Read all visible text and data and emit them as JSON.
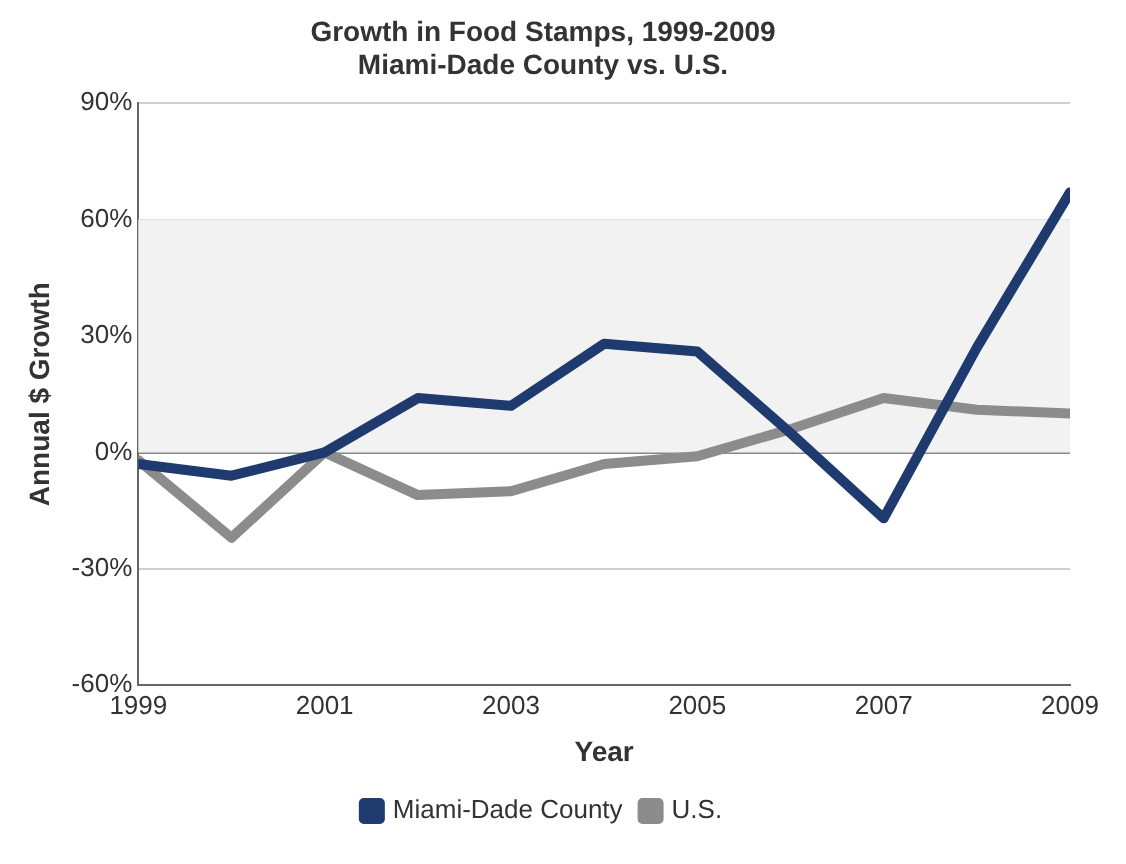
{
  "chart_data": {
    "type": "line",
    "title": "Growth in Food Stamps, 1999-2009",
    "subtitle": "Miami-Dade County vs. U.S.",
    "xlabel": "Year",
    "ylabel": "Annual $ Growth",
    "x": [
      1999,
      2000,
      2001,
      2002,
      2003,
      2004,
      2005,
      2006,
      2007,
      2008,
      2009
    ],
    "series": [
      {
        "name": "Miami-Dade County",
        "color": "#1f3a6e",
        "values": [
          -3,
          -6,
          0,
          14,
          12,
          28,
          26,
          5,
          -17,
          27,
          67
        ]
      },
      {
        "name": "U.S.",
        "color": "#8c8c8c",
        "values": [
          -2,
          -22,
          0,
          -11,
          -10,
          -3,
          -1,
          6,
          14,
          11,
          10
        ]
      }
    ],
    "xlim": [
      1999,
      2009
    ],
    "xticks": [
      1999,
      2001,
      2003,
      2005,
      2007,
      2009
    ],
    "ylim": [
      -60,
      90
    ],
    "yticks": [
      {
        "value": -60,
        "label": "-60%"
      },
      {
        "value": -30,
        "label": "-30%"
      },
      {
        "value": 0,
        "label": "0%"
      },
      {
        "value": 30,
        "label": "30%"
      },
      {
        "value": 60,
        "label": "60%"
      },
      {
        "value": 90,
        "label": "90%"
      }
    ],
    "bands": [
      {
        "axis": "y",
        "from": 0,
        "to": 60,
        "color": "#f2f2f2"
      }
    ],
    "grid": "y",
    "legend": "bottom",
    "marker": "none",
    "line_style": "solid"
  }
}
